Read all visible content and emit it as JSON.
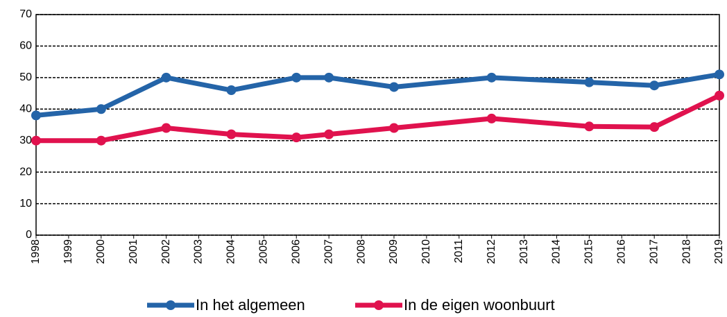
{
  "chart_data": {
    "type": "line",
    "x": [
      1998,
      2000,
      2002,
      2004,
      2006,
      2007,
      2009,
      2012,
      2015,
      2017,
      2019
    ],
    "series": [
      {
        "name": "In het algemeen",
        "color": "#2464a8",
        "values": [
          38,
          40,
          50,
          46,
          50,
          50,
          47,
          50,
          48.5,
          47.5,
          51
        ]
      },
      {
        "name": "In de eigen woonbuurt",
        "color": "#e0124e",
        "values": [
          30,
          30,
          34,
          32,
          31,
          32,
          34,
          37,
          34.5,
          34.3,
          44.3
        ]
      }
    ],
    "xlim": [
      1998,
      2019
    ],
    "xticks": [
      1998,
      1999,
      2000,
      2001,
      2002,
      2003,
      2004,
      2005,
      2006,
      2007,
      2008,
      2009,
      2010,
      2011,
      2012,
      2013,
      2014,
      2015,
      2016,
      2017,
      2018,
      2019
    ],
    "ylim": [
      0,
      70
    ],
    "yticks": [
      0,
      10,
      20,
      30,
      40,
      50,
      60,
      70
    ],
    "grid": true,
    "legend": "bottom"
  }
}
